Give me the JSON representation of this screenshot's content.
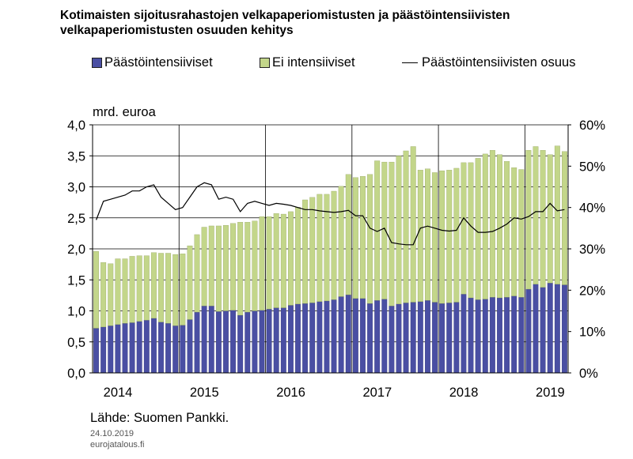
{
  "title": "Kotimaisten sijoitusrahastojen velkapaperiomistusten ja päästöintensiivisten velkapaperiomistusten osuuden kehitys",
  "legend": {
    "intensive": "Päästöintensiiviset",
    "non_intensive": "Ei intensiiviset",
    "share": "Päästöintensiivisten osuus"
  },
  "colors": {
    "intensive": "#4a4fa3",
    "non_intensive": "#c3d68a",
    "share": "#000000"
  },
  "source": "Lähde: Suomen Pankki.",
  "date": "24.10.2019",
  "site": "eurojatalous.fi",
  "chart_data": {
    "type": "bar",
    "stacked": true,
    "ylabel": "mrd. euroa",
    "ylim": [
      0,
      4
    ],
    "y2lim": [
      0,
      60
    ],
    "yticks": [
      "0,0",
      "0,5",
      "1,0",
      "1,5",
      "2,0",
      "2,5",
      "3,0",
      "3,5",
      "4,0"
    ],
    "y2ticks": [
      "0%",
      "10%",
      "20%",
      "30%",
      "40%",
      "50%",
      "60%"
    ],
    "years": [
      "2014",
      "2015",
      "2016",
      "2017",
      "2018",
      "2019"
    ],
    "start": "2014-01",
    "series": [
      {
        "name": "Päästöintensiiviset",
        "values": [
          0.72,
          0.74,
          0.76,
          0.78,
          0.8,
          0.81,
          0.83,
          0.85,
          0.88,
          0.82,
          0.8,
          0.76,
          0.77,
          0.86,
          0.98,
          1.08,
          1.08,
          0.99,
          1.0,
          1.01,
          0.93,
          0.98,
          1.0,
          1.01,
          1.03,
          1.05,
          1.05,
          1.09,
          1.11,
          1.12,
          1.13,
          1.15,
          1.16,
          1.18,
          1.23,
          1.26,
          1.2,
          1.2,
          1.12,
          1.17,
          1.19,
          1.08,
          1.11,
          1.13,
          1.14,
          1.15,
          1.17,
          1.14,
          1.12,
          1.13,
          1.14,
          1.27,
          1.21,
          1.18,
          1.19,
          1.22,
          1.21,
          1.22,
          1.24,
          1.22,
          1.35,
          1.43,
          1.38,
          1.45,
          1.43,
          1.42
        ]
      },
      {
        "name": "Ei intensiiviset",
        "values": [
          1.24,
          1.04,
          1.0,
          1.06,
          1.04,
          1.07,
          1.06,
          1.04,
          1.06,
          1.11,
          1.13,
          1.15,
          1.15,
          1.19,
          1.25,
          1.27,
          1.29,
          1.38,
          1.38,
          1.4,
          1.5,
          1.45,
          1.45,
          1.51,
          1.49,
          1.52,
          1.51,
          1.51,
          1.56,
          1.67,
          1.7,
          1.73,
          1.72,
          1.75,
          1.78,
          1.94,
          1.95,
          1.97,
          2.08,
          2.25,
          2.21,
          2.32,
          2.39,
          2.45,
          2.51,
          2.12,
          2.12,
          2.09,
          2.14,
          2.14,
          2.16,
          2.12,
          2.18,
          2.28,
          2.34,
          2.37,
          2.31,
          2.19,
          2.07,
          2.06,
          2.24,
          2.22,
          2.21,
          2.07,
          2.23,
          2.15
        ]
      },
      {
        "name": "Päästöintensiivisten osuus",
        "values": [
          37,
          41.5,
          42,
          42.5,
          43,
          44,
          44,
          45,
          45.5,
          42.5,
          41,
          39.5,
          40,
          42.5,
          45,
          46,
          45.5,
          42,
          42.5,
          42,
          39,
          41,
          41.5,
          41,
          40.5,
          41,
          40.8,
          40.5,
          40,
          39.5,
          39.5,
          39.2,
          39,
          38.8,
          39,
          39.3,
          38,
          38,
          35,
          34.2,
          35,
          31.5,
          31.2,
          31,
          31,
          35,
          35.5,
          35,
          34.5,
          34.3,
          34.5,
          37.5,
          35.5,
          34,
          34,
          34.2,
          35,
          36,
          37.5,
          37.2,
          37.8,
          39,
          39,
          41,
          39.2,
          39.5
        ]
      }
    ]
  }
}
